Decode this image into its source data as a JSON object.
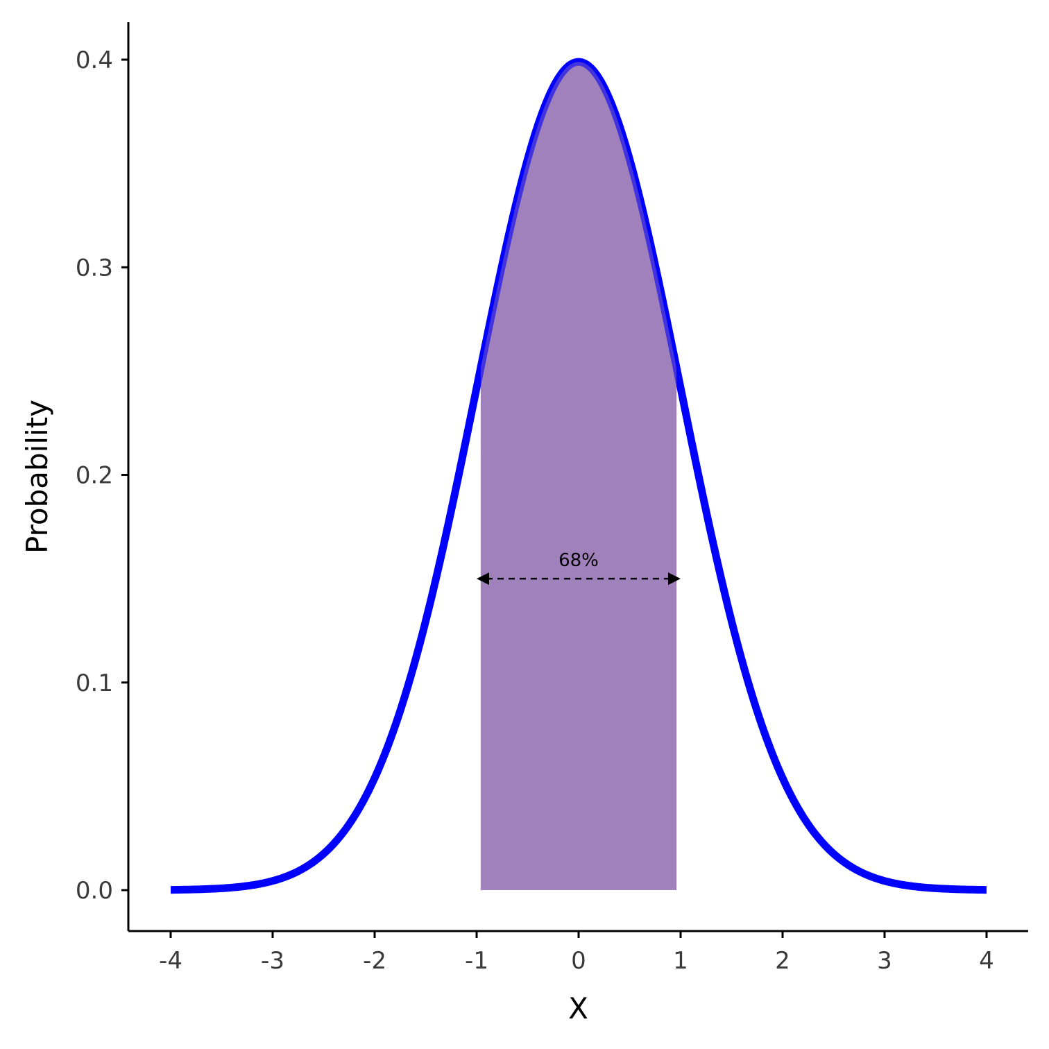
{
  "chart_data": {
    "type": "area",
    "xlabel": "X",
    "ylabel": "Probability",
    "xlim": [
      -4,
      4
    ],
    "ylim": [
      0,
      0.4
    ],
    "x_ticks": [
      "-4",
      "-3",
      "-2",
      "-1",
      "0",
      "1",
      "2",
      "3",
      "4"
    ],
    "y_ticks": [
      "0.0",
      "0.1",
      "0.2",
      "0.3",
      "0.4"
    ],
    "grid": false,
    "series": [
      {
        "curve": "standard-normal-density",
        "mean": 0,
        "sd": 1,
        "x_start": -4,
        "x_end": 4,
        "x": [
          -4,
          -3.5,
          -3,
          -2.5,
          -2,
          -1.5,
          -1,
          -0.5,
          0,
          0.5,
          1,
          1.5,
          2,
          2.5,
          3,
          3.5,
          4
        ],
        "y": [
          0.0001,
          0.0009,
          0.0044,
          0.0175,
          0.054,
          0.1295,
          0.242,
          0.3521,
          0.3989,
          0.3521,
          0.242,
          0.1295,
          0.054,
          0.0175,
          0.0044,
          0.0009,
          0.0001
        ],
        "color": "#0000FF"
      }
    ],
    "shaded_region": {
      "x_from": -0.96,
      "x_to": 0.96,
      "color": "#9370B4"
    },
    "annotation": {
      "text": "68%",
      "arrow_from": -1,
      "arrow_to": 1,
      "y": 0.15,
      "style": "dashed double-headed arrow"
    }
  }
}
